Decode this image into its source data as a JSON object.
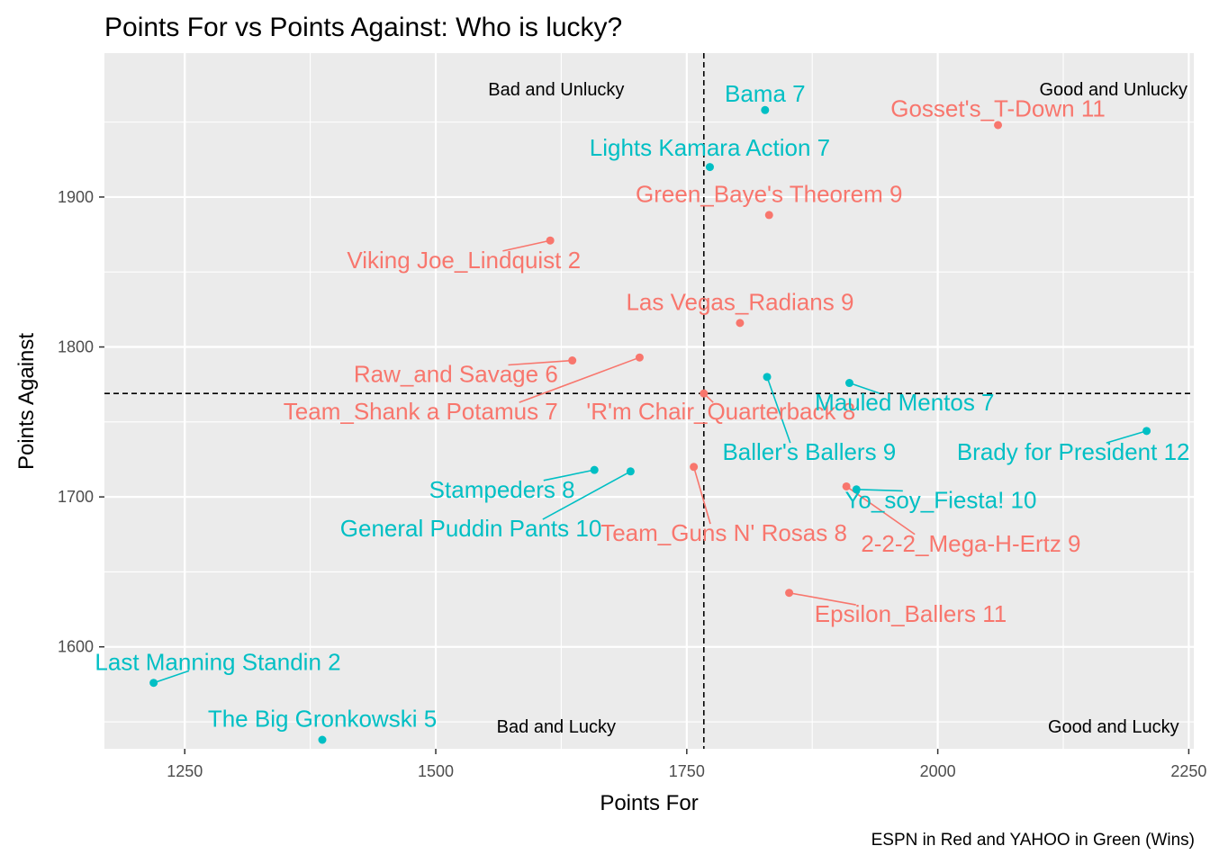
{
  "chart_data": {
    "type": "scatter",
    "title": "Points For vs Points Against: Who is lucky?",
    "xlabel": "Points For",
    "ylabel": "Points Against",
    "caption": "ESPN in Red and YAHOO in Green (Wins)",
    "xlim": [
      1170,
      2255
    ],
    "ylim": [
      1532,
      1996
    ],
    "x_ticks": [
      1250,
      1500,
      1750,
      2000,
      2250
    ],
    "y_ticks": [
      1600,
      1700,
      1800,
      1900
    ],
    "grid": true,
    "reference_lines": {
      "x": 1767,
      "y": 1769
    },
    "colors": {
      "ESPN": "#F8766D",
      "YAHOO": "#00BFC4",
      "panel": "#EBEBEB",
      "grid": "#FFFFFF"
    },
    "quadrant_labels": [
      {
        "text": "Bad and Unlucky",
        "x": 1620,
        "y": 1972
      },
      {
        "text": "Good and Unlucky",
        "x": 2175,
        "y": 1972
      },
      {
        "text": "Bad and Lucky",
        "x": 1620,
        "y": 1547
      },
      {
        "text": "Good and Lucky",
        "x": 2175,
        "y": 1547
      }
    ],
    "series": [
      {
        "name": "ESPN",
        "points": [
          {
            "label": "Gosset's_T-Down 11",
            "x": 2060,
            "y": 1948,
            "lx": 2060,
            "ly": 1959
          },
          {
            "label": "Green_Baye's Theorem 9",
            "x": 1832,
            "y": 1888,
            "lx": 1832,
            "ly": 1902
          },
          {
            "label": "Viking Joe_Lindquist 2",
            "x": 1614,
            "y": 1871,
            "lx": 1528,
            "ly": 1858
          },
          {
            "label": "Las Vegas_Radians 9",
            "x": 1803,
            "y": 1816,
            "lx": 1803,
            "ly": 1830
          },
          {
            "label": "Raw_and Savage 6",
            "x": 1636,
            "y": 1791,
            "lx": 1520,
            "ly": 1782
          },
          {
            "label": "Team_Shank a Potamus 7",
            "x": 1703,
            "y": 1793,
            "lx": 1485,
            "ly": 1757
          },
          {
            "label": "'R'm Chair_Quarterback 8",
            "x": 1767,
            "y": 1769,
            "lx": 1784,
            "ly": 1757
          },
          {
            "label": "Team_Guns N' Rosas 8",
            "x": 1757,
            "y": 1720,
            "lx": 1787,
            "ly": 1676
          },
          {
            "label": "2-2-2_Mega-H-Ertz 9",
            "x": 1909,
            "y": 1707,
            "lx": 2033,
            "ly": 1669
          },
          {
            "label": "Epsilon_Ballers 11",
            "x": 1852,
            "y": 1636,
            "lx": 1973,
            "ly": 1622
          }
        ]
      },
      {
        "name": "YAHOO",
        "points": [
          {
            "label": "Bama 7",
            "x": 1828,
            "y": 1958,
            "lx": 1828,
            "ly": 1969
          },
          {
            "label": "Lights Kamara Action 7",
            "x": 1773,
            "y": 1920,
            "lx": 1773,
            "ly": 1933
          },
          {
            "label": "Mauled Mentos 7",
            "x": 1912,
            "y": 1776,
            "lx": 1967,
            "ly": 1763
          },
          {
            "label": "Baller's Ballers 9",
            "x": 1830,
            "y": 1780,
            "lx": 1872,
            "ly": 1730
          },
          {
            "label": "Brady for President 12",
            "x": 2208,
            "y": 1744,
            "lx": 2135,
            "ly": 1730
          },
          {
            "label": "Stampeders 8",
            "x": 1658,
            "y": 1718,
            "lx": 1566,
            "ly": 1705
          },
          {
            "label": "General Puddin Pants 10",
            "x": 1694,
            "y": 1717,
            "lx": 1535,
            "ly": 1679
          },
          {
            "label": "Yo_soy_Fiesta! 10",
            "x": 1919,
            "y": 1705,
            "lx": 2003,
            "ly": 1698
          },
          {
            "label": "Last Manning Standin 2",
            "x": 1219,
            "y": 1576,
            "lx": 1283,
            "ly": 1590
          },
          {
            "label": "The Big Gronkowski 5",
            "x": 1387,
            "y": 1538,
            "lx": 1387,
            "ly": 1552
          }
        ]
      }
    ]
  }
}
